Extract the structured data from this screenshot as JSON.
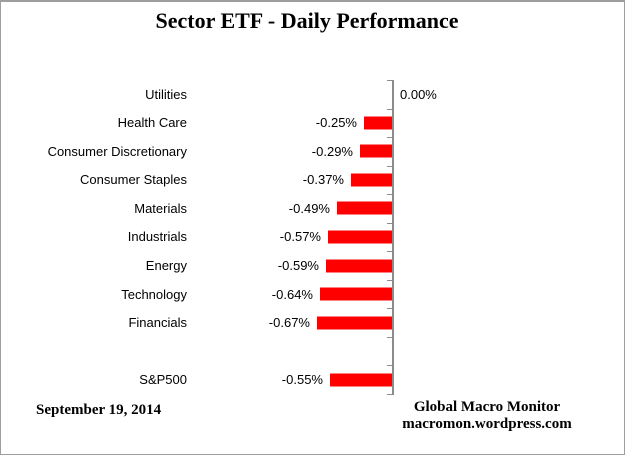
{
  "title": "Sector ETF - Daily Performance",
  "footer": {
    "date": "September 19, 2014",
    "credit_line1": "Global Macro Monitor",
    "credit_line2": "macromon.wordpress.com"
  },
  "chart_data": {
    "type": "bar",
    "orientation": "horizontal",
    "title": "Sector ETF - Daily Performance",
    "categories": [
      "Utilities",
      "Health Care",
      "Consumer Discretionary",
      "Consumer Staples",
      "Materials",
      "Industrials",
      "Energy",
      "Technology",
      "Financials",
      "",
      "S&P500"
    ],
    "values": [
      0.0,
      -0.25,
      -0.29,
      -0.37,
      -0.49,
      -0.57,
      -0.59,
      -0.64,
      -0.67,
      null,
      -0.55
    ],
    "value_labels": [
      "0.00%",
      "-0.25%",
      "-0.29%",
      "-0.37%",
      "-0.49%",
      "-0.57%",
      "-0.59%",
      "-0.64%",
      "-0.67%",
      "",
      "-0.55%"
    ],
    "xlabel": "",
    "ylabel": "",
    "xlim": [
      -0.8,
      0.35
    ],
    "grid": false,
    "legend": false,
    "bar_color": "#ff0000",
    "axis_color": "#8c8c8c",
    "text_color": "#000000"
  }
}
